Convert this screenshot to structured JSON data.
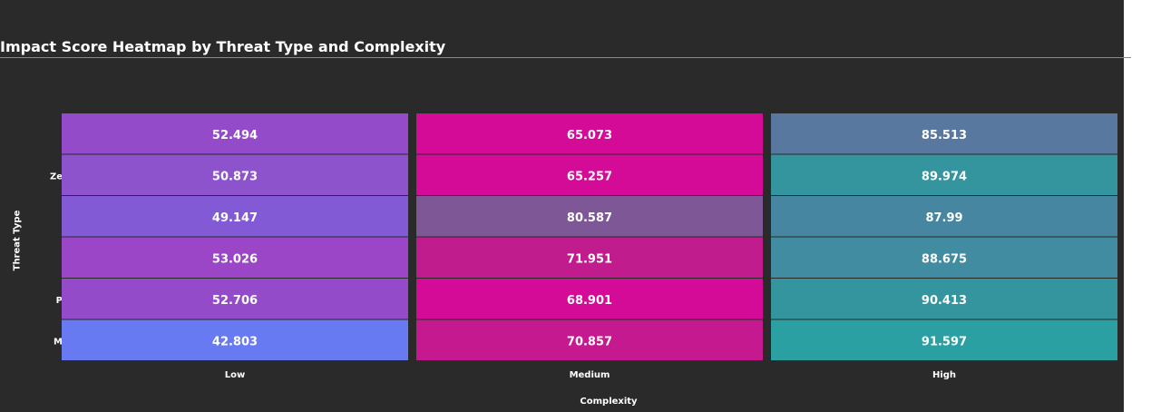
{
  "chart_data": {
    "type": "heatmap",
    "title": "Impact Score Heatmap by Threat Type and Complexity",
    "xlabel": "Complexity",
    "ylabel": "Threat Type",
    "columns": [
      "Low",
      "Medium",
      "High"
    ],
    "row_tick_fragments": [
      "",
      "Ze",
      "",
      "",
      "P",
      "M"
    ],
    "values": [
      [
        52.494,
        65.073,
        85.513
      ],
      [
        50.873,
        65.257,
        89.974
      ],
      [
        49.147,
        80.587,
        87.99
      ],
      [
        53.026,
        71.951,
        88.675
      ],
      [
        52.706,
        68.901,
        90.413
      ],
      [
        42.803,
        70.857,
        91.597
      ]
    ],
    "cell_colors": [
      [
        "#944bc9",
        "#d40b97",
        "#5878a0"
      ],
      [
        "#8c53cd",
        "#d40b97",
        "#35959f"
      ],
      [
        "#825ad6",
        "#7e5896",
        "#4786a0"
      ],
      [
        "#9a46c7",
        "#c11c8e",
        "#428ca1"
      ],
      [
        "#944bc9",
        "#d40b97",
        "#35959f"
      ],
      [
        "#677af1",
        "#c4198f",
        "#2ba0a3"
      ]
    ],
    "colors": {
      "background": "#2a2a2a",
      "text": "#ffffff",
      "cell_border": "#2a2a2a"
    }
  }
}
